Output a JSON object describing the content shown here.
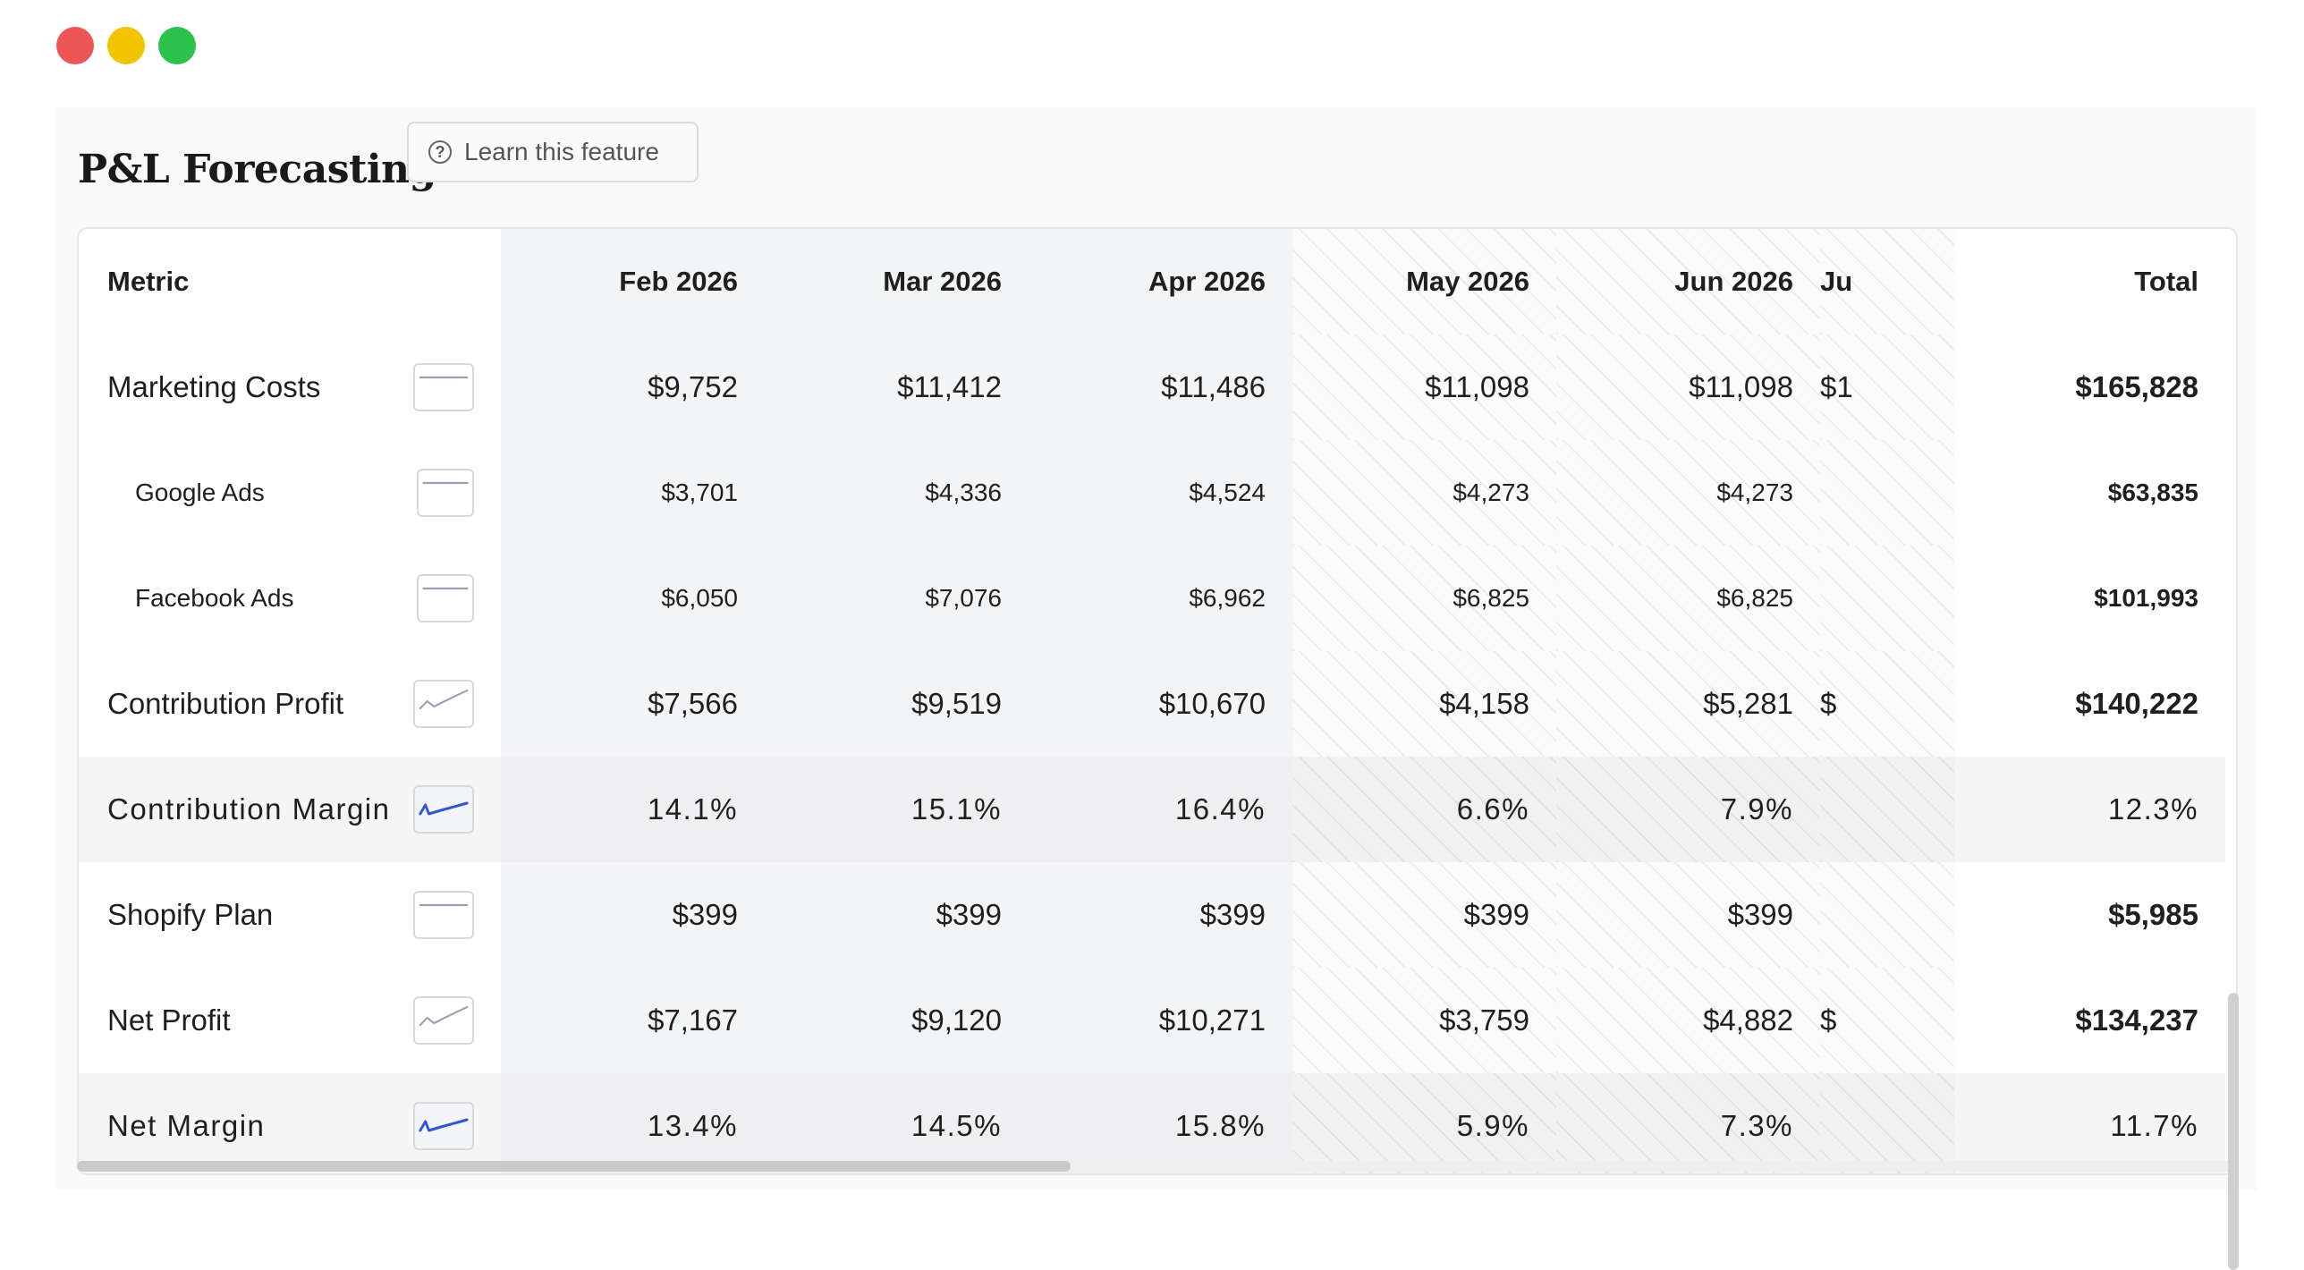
{
  "window": {
    "controls": [
      "close",
      "minimize",
      "maximize"
    ]
  },
  "page": {
    "title": "P&L Forecasting",
    "learn_label": "Learn this feature"
  },
  "table": {
    "headers": {
      "metric": "Metric",
      "months": [
        "Feb 2026",
        "Mar 2026",
        "Apr 2026",
        "May 2026",
        "Jun 2026",
        "Ju"
      ],
      "total": "Total"
    },
    "rows": [
      {
        "label": "Marketing Costs",
        "values": [
          "$9,752",
          "$11,412",
          "$11,486",
          "$11,098",
          "$11,098",
          "$1"
        ],
        "total": "$165,828",
        "sparkline": "flat"
      },
      {
        "label": "Google Ads",
        "values": [
          "$3,701",
          "$4,336",
          "$4,524",
          "$4,273",
          "$4,273",
          ""
        ],
        "total": "$63,835",
        "sparkline": "flat"
      },
      {
        "label": "Facebook Ads",
        "values": [
          "$6,050",
          "$7,076",
          "$6,962",
          "$6,825",
          "$6,825",
          ""
        ],
        "total": "$101,993",
        "sparkline": "flat"
      },
      {
        "label": "Contribution Profit",
        "values": [
          "$7,566",
          "$9,519",
          "$10,670",
          "$4,158",
          "$5,281",
          "$"
        ],
        "total": "$140,222",
        "sparkline": "up-dip"
      },
      {
        "label": "Contribution Margin",
        "values": [
          "14.1%",
          "15.1%",
          "16.4%",
          "6.6%",
          "7.9%",
          ""
        ],
        "total": "12.3%",
        "sparkline": "dip-up"
      },
      {
        "label": "Shopify Plan",
        "values": [
          "$399",
          "$399",
          "$399",
          "$399",
          "$399",
          ""
        ],
        "total": "$5,985",
        "sparkline": "flat"
      },
      {
        "label": "Net Profit",
        "values": [
          "$7,167",
          "$9,120",
          "$10,271",
          "$3,759",
          "$4,882",
          "$"
        ],
        "total": "$134,237",
        "sparkline": "up-dip"
      },
      {
        "label": "Net Margin",
        "values": [
          "13.4%",
          "14.5%",
          "15.8%",
          "5.9%",
          "7.3%",
          ""
        ],
        "total": "11.7%",
        "sparkline": "dip-up"
      }
    ]
  },
  "colors": {
    "close": "#ee5555",
    "minimize": "#f5c400",
    "maximize": "#2cc24c",
    "sparkline_gray": "#9aa3b5",
    "sparkline_blue": "#2f55d4"
  },
  "scroll": {
    "horizontal_thumb_fraction": 0.46
  }
}
